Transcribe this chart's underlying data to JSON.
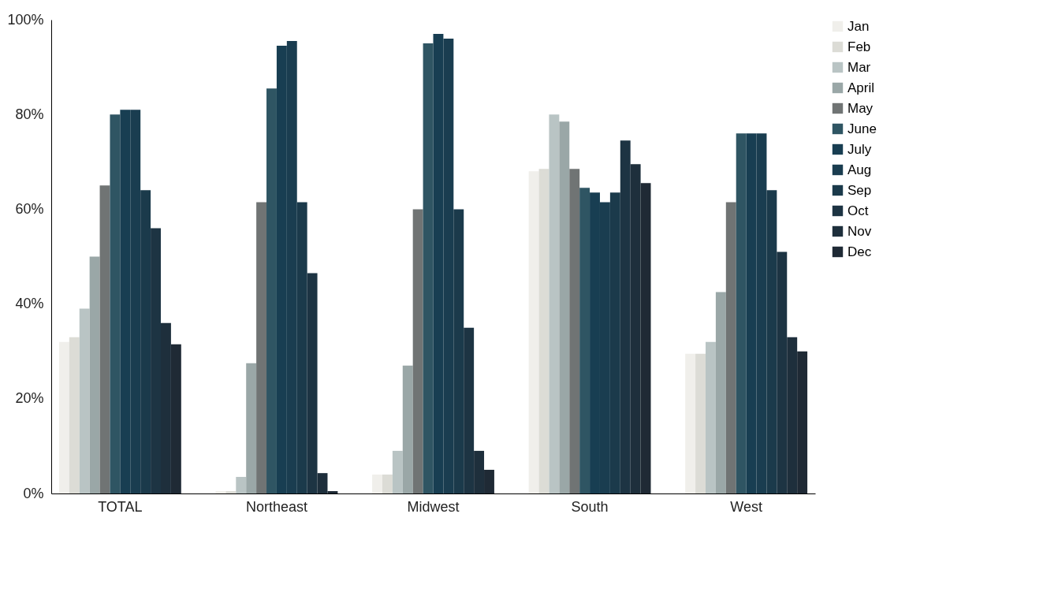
{
  "chart_data": {
    "type": "bar",
    "categories": [
      "TOTAL",
      "Northeast",
      "Midwest",
      "South",
      "West"
    ],
    "series": [
      {
        "name": "Jan",
        "color": "#f0efeb",
        "values": [
          32,
          0.5,
          4,
          68,
          29.5
        ]
      },
      {
        "name": "Feb",
        "color": "#dcdcd6",
        "values": [
          33,
          0.5,
          4,
          68.5,
          29.5
        ]
      },
      {
        "name": "Mar",
        "color": "#b9c4c4",
        "values": [
          39,
          3.5,
          9,
          80,
          32
        ]
      },
      {
        "name": "April",
        "color": "#9aa7a7",
        "values": [
          50,
          27.5,
          27,
          78.5,
          42.5
        ]
      },
      {
        "name": "May",
        "color": "#707474",
        "values": [
          65,
          61.5,
          60,
          68.5,
          61.5
        ]
      },
      {
        "name": "June",
        "color": "#2f5563",
        "values": [
          80,
          85.5,
          95,
          64.5,
          76
        ]
      },
      {
        "name": "July",
        "color": "#183e52",
        "values": [
          81,
          94.5,
          97,
          63.5,
          76
        ]
      },
      {
        "name": "Aug",
        "color": "#1a3d50",
        "values": [
          81,
          95.5,
          96,
          61.5,
          76
        ]
      },
      {
        "name": "Sep",
        "color": "#1b3a4b",
        "values": [
          64,
          61.5,
          60,
          63.5,
          64
        ]
      },
      {
        "name": "Oct",
        "color": "#1d3443",
        "values": [
          56,
          46.5,
          35,
          74.5,
          51
        ]
      },
      {
        "name": "Nov",
        "color": "#1e2f3c",
        "values": [
          36,
          4.3,
          9,
          69.5,
          33
        ]
      },
      {
        "name": "Dec",
        "color": "#1f2a35",
        "values": [
          31.5,
          0.5,
          5,
          65.5,
          30
        ]
      }
    ],
    "ylim": [
      0,
      100
    ],
    "yticks": [
      {
        "value": 0,
        "label": "0%"
      },
      {
        "value": 20,
        "label": "20%"
      },
      {
        "value": 40,
        "label": "40%"
      },
      {
        "value": 60,
        "label": "60%"
      },
      {
        "value": 80,
        "label": "80%"
      },
      {
        "value": 100,
        "label": "100%"
      }
    ],
    "grid": false,
    "legend": "right"
  }
}
